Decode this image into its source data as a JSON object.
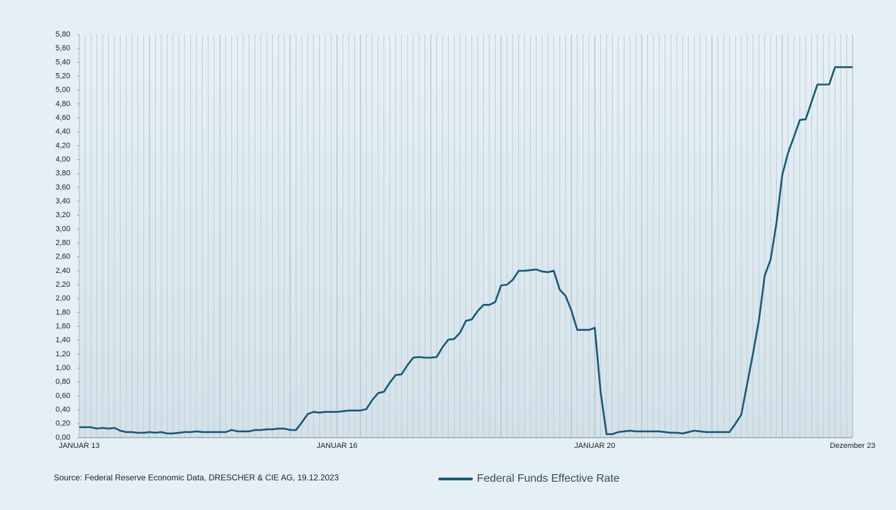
{
  "chart_data": {
    "type": "line",
    "source": "Source: Federal Reserve Economic Data, DRESCHER & CIE AG, 19.12.2023",
    "categories": [
      "JANUAR 13",
      null,
      null,
      null,
      null,
      null,
      null,
      null,
      null,
      null,
      null,
      null,
      null,
      null,
      null,
      null,
      null,
      null,
      null,
      null,
      null,
      null,
      null,
      null,
      null,
      null,
      null,
      null,
      null,
      null,
      null,
      null,
      null,
      null,
      null,
      null,
      null,
      null,
      null,
      null,
      null,
      null,
      null,
      null,
      "JANUAR 16",
      null,
      null,
      null,
      null,
      null,
      null,
      null,
      null,
      null,
      null,
      null,
      null,
      null,
      null,
      null,
      null,
      null,
      null,
      null,
      null,
      null,
      null,
      null,
      null,
      null,
      null,
      null,
      null,
      null,
      null,
      null,
      null,
      null,
      null,
      null,
      null,
      null,
      null,
      null,
      null,
      null,
      null,
      null,
      "JANUAR 20",
      null,
      null,
      null,
      null,
      null,
      null,
      null,
      null,
      null,
      null,
      null,
      null,
      null,
      null,
      null,
      null,
      null,
      null,
      null,
      null,
      null,
      null,
      null,
      null,
      null,
      null,
      null,
      null,
      null,
      null,
      null,
      null,
      null,
      null,
      null,
      null,
      null,
      null,
      null,
      null,
      null,
      null,
      null,
      "Dezember 23"
    ],
    "series": [
      {
        "name": "Federal Funds Effective Rate",
        "color": "#17587a",
        "values": [
          0.15,
          0.15,
          0.15,
          0.13,
          0.14,
          0.13,
          0.14,
          0.1,
          0.08,
          0.08,
          0.07,
          0.07,
          0.08,
          0.07,
          0.08,
          0.06,
          0.06,
          0.07,
          0.08,
          0.08,
          0.09,
          0.08,
          0.08,
          0.08,
          0.08,
          0.08,
          0.11,
          0.09,
          0.09,
          0.09,
          0.11,
          0.11,
          0.12,
          0.12,
          0.13,
          0.13,
          0.11,
          0.11,
          0.22,
          0.34,
          0.37,
          0.36,
          0.37,
          0.37,
          0.37,
          0.38,
          0.39,
          0.39,
          0.39,
          0.41,
          0.54,
          0.64,
          0.66,
          0.79,
          0.9,
          0.91,
          1.04,
          1.15,
          1.16,
          1.15,
          1.15,
          1.16,
          1.3,
          1.41,
          1.42,
          1.51,
          1.68,
          1.7,
          1.82,
          1.91,
          1.91,
          1.95,
          2.19,
          2.2,
          2.27,
          2.4,
          2.4,
          2.41,
          2.42,
          2.39,
          2.38,
          2.4,
          2.13,
          2.04,
          1.83,
          1.55,
          1.55,
          1.55,
          1.58,
          0.65,
          0.05,
          0.05,
          0.08,
          0.09,
          0.1,
          0.09,
          0.09,
          0.09,
          0.09,
          0.09,
          0.08,
          0.07,
          0.07,
          0.06,
          0.08,
          0.1,
          0.09,
          0.08,
          0.08,
          0.08,
          0.08,
          0.08,
          0.2,
          0.33,
          0.77,
          1.21,
          1.68,
          2.33,
          2.56,
          3.08,
          3.78,
          4.1,
          4.33,
          4.57,
          4.58,
          4.83,
          5.08,
          5.08,
          5.08,
          5.33,
          5.33,
          5.33,
          5.33
        ]
      }
    ],
    "ylim": [
      0,
      5.8
    ],
    "yticks": [
      {
        "value": 0,
        "label": "0,00"
      },
      {
        "value": 0.2,
        "label": "0,20"
      },
      {
        "value": 0.4,
        "label": "0,40"
      },
      {
        "value": 0.6,
        "label": "0,60"
      },
      {
        "value": 0.8,
        "label": "0,80"
      },
      {
        "value": 1.0,
        "label": "1,00"
      },
      {
        "value": 1.2,
        "label": "1,20"
      },
      {
        "value": 1.4,
        "label": "1,40"
      },
      {
        "value": 1.6,
        "label": "1,60"
      },
      {
        "value": 1.8,
        "label": "1,80"
      },
      {
        "value": 2.0,
        "label": "2,00"
      },
      {
        "value": 2.2,
        "label": "2,20"
      },
      {
        "value": 2.4,
        "label": "2,40"
      },
      {
        "value": 2.6,
        "label": "2,60"
      },
      {
        "value": 2.8,
        "label": "2,80"
      },
      {
        "value": 3.0,
        "label": "3,00"
      },
      {
        "value": 3.2,
        "label": "3,20"
      },
      {
        "value": 3.4,
        "label": "3,40"
      },
      {
        "value": 3.6,
        "label": "3,60"
      },
      {
        "value": 3.8,
        "label": "3,80"
      },
      {
        "value": 4.0,
        "label": "4,00"
      },
      {
        "value": 4.2,
        "label": "4,20"
      },
      {
        "value": 4.4,
        "label": "4,40"
      },
      {
        "value": 4.6,
        "label": "4,60"
      },
      {
        "value": 4.8,
        "label": "4,80"
      },
      {
        "value": 5.0,
        "label": "5,00"
      },
      {
        "value": 5.2,
        "label": "5,20"
      },
      {
        "value": 5.4,
        "label": "5,40"
      },
      {
        "value": 5.6,
        "label": "5,60"
      },
      {
        "value": 5.8,
        "label": "5,80"
      }
    ]
  }
}
